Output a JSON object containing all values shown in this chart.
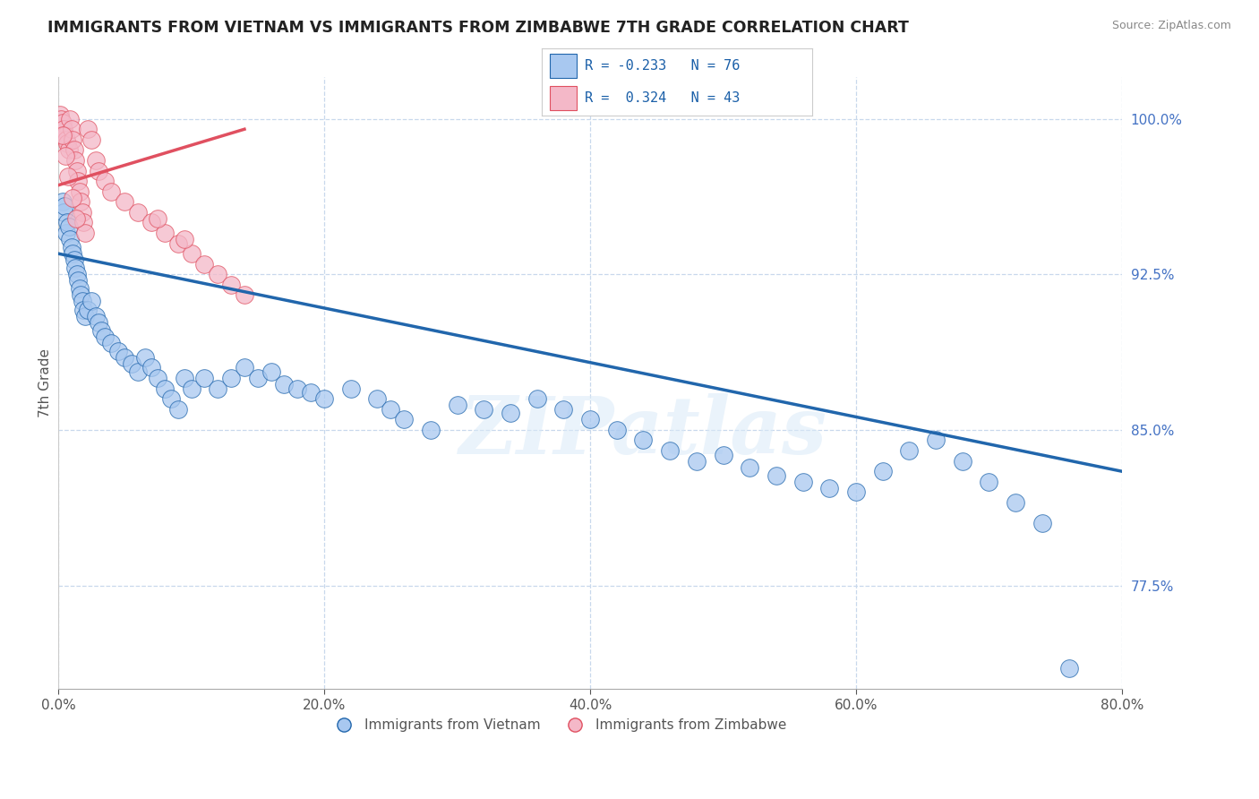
{
  "title": "IMMIGRANTS FROM VIETNAM VS IMMIGRANTS FROM ZIMBABWE 7TH GRADE CORRELATION CHART",
  "source": "Source: ZipAtlas.com",
  "xlabel_bottom_vals": [
    0.0,
    20.0,
    40.0,
    60.0,
    80.0
  ],
  "ylabel_right_vals": [
    100.0,
    92.5,
    85.0,
    77.5
  ],
  "ylabel_label": "7th Grade",
  "legend_blue_label": "Immigrants from Vietnam",
  "legend_pink_label": "Immigrants from Zimbabwe",
  "legend_blue_R": "R = -0.233",
  "legend_blue_N": "N = 76",
  "legend_pink_R": "R =  0.324",
  "legend_pink_N": "N = 43",
  "xmin": 0.0,
  "xmax": 80.0,
  "ymin": 72.5,
  "ymax": 102.0,
  "blue_color": "#a8c8f0",
  "pink_color": "#f4b8c8",
  "blue_line_color": "#2166ac",
  "pink_line_color": "#e05060",
  "watermark": "ZIPatlas",
  "blue_scatter_x": [
    0.3,
    0.4,
    0.5,
    0.6,
    0.7,
    0.8,
    0.9,
    1.0,
    1.1,
    1.2,
    1.3,
    1.4,
    1.5,
    1.6,
    1.7,
    1.8,
    1.9,
    2.0,
    2.2,
    2.5,
    2.8,
    3.0,
    3.2,
    3.5,
    4.0,
    4.5,
    5.0,
    5.5,
    6.0,
    6.5,
    7.0,
    7.5,
    8.0,
    8.5,
    9.0,
    9.5,
    10.0,
    11.0,
    12.0,
    13.0,
    14.0,
    15.0,
    16.0,
    17.0,
    18.0,
    19.0,
    20.0,
    22.0,
    24.0,
    25.0,
    26.0,
    28.0,
    30.0,
    32.0,
    34.0,
    36.0,
    38.0,
    40.0,
    42.0,
    44.0,
    46.0,
    48.0,
    50.0,
    52.0,
    54.0,
    56.0,
    58.0,
    60.0,
    62.0,
    64.0,
    66.0,
    68.0,
    70.0,
    72.0,
    74.0,
    76.0
  ],
  "blue_scatter_y": [
    96.0,
    95.5,
    95.8,
    94.5,
    95.0,
    94.8,
    94.2,
    93.8,
    93.5,
    93.2,
    92.8,
    92.5,
    92.2,
    91.8,
    91.5,
    91.2,
    90.8,
    90.5,
    90.8,
    91.2,
    90.5,
    90.2,
    89.8,
    89.5,
    89.2,
    88.8,
    88.5,
    88.2,
    87.8,
    88.5,
    88.0,
    87.5,
    87.0,
    86.5,
    86.0,
    87.5,
    87.0,
    87.5,
    87.0,
    87.5,
    88.0,
    87.5,
    87.8,
    87.2,
    87.0,
    86.8,
    86.5,
    87.0,
    86.5,
    86.0,
    85.5,
    85.0,
    86.2,
    86.0,
    85.8,
    86.5,
    86.0,
    85.5,
    85.0,
    84.5,
    84.0,
    83.5,
    83.8,
    83.2,
    82.8,
    82.5,
    82.2,
    82.0,
    83.0,
    84.0,
    84.5,
    83.5,
    82.5,
    81.5,
    80.5,
    73.5
  ],
  "pink_scatter_x": [
    0.1,
    0.2,
    0.3,
    0.4,
    0.5,
    0.6,
    0.7,
    0.8,
    0.9,
    1.0,
    1.1,
    1.2,
    1.3,
    1.4,
    1.5,
    1.6,
    1.7,
    1.8,
    1.9,
    2.0,
    2.2,
    2.5,
    2.8,
    3.0,
    3.5,
    4.0,
    5.0,
    6.0,
    7.0,
    8.0,
    9.0,
    10.0,
    11.0,
    12.0,
    13.0,
    14.0,
    0.35,
    0.55,
    0.75,
    1.05,
    1.35,
    7.5,
    9.5
  ],
  "pink_scatter_y": [
    100.2,
    100.0,
    99.8,
    99.5,
    99.2,
    99.0,
    98.8,
    98.5,
    100.0,
    99.5,
    99.0,
    98.5,
    98.0,
    97.5,
    97.0,
    96.5,
    96.0,
    95.5,
    95.0,
    94.5,
    99.5,
    99.0,
    98.0,
    97.5,
    97.0,
    96.5,
    96.0,
    95.5,
    95.0,
    94.5,
    94.0,
    93.5,
    93.0,
    92.5,
    92.0,
    91.5,
    99.2,
    98.2,
    97.2,
    96.2,
    95.2,
    95.2,
    94.2
  ],
  "blue_trendline_x": [
    0.0,
    80.0
  ],
  "blue_trendline_y": [
    93.5,
    83.0
  ],
  "pink_trendline_x": [
    0.0,
    14.0
  ],
  "pink_trendline_y": [
    96.8,
    99.5
  ]
}
